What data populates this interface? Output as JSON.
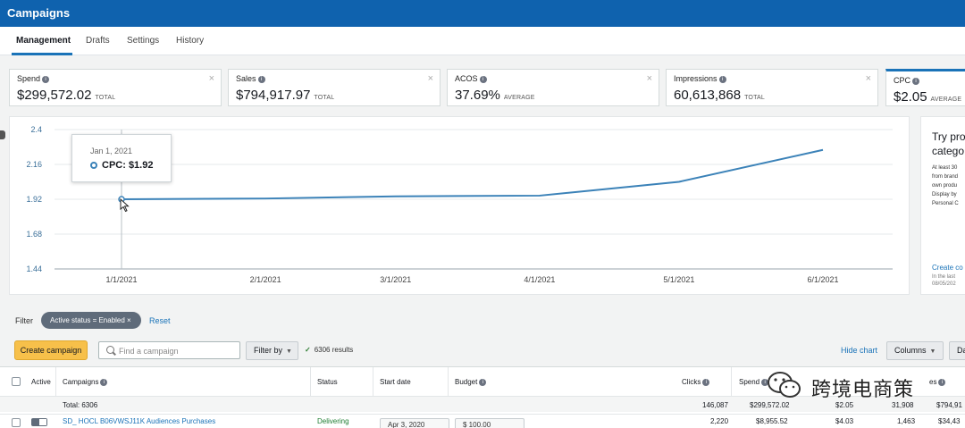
{
  "app": {
    "title": "Campaigns"
  },
  "tabs": [
    {
      "label": "Management",
      "active": true
    },
    {
      "label": "Drafts",
      "active": false
    },
    {
      "label": "Settings",
      "active": false
    },
    {
      "label": "History",
      "active": false
    }
  ],
  "metrics": [
    {
      "label": "Spend",
      "value": "$299,572.02",
      "agg": "TOTAL",
      "selected": false
    },
    {
      "label": "Sales",
      "value": "$794,917.97",
      "agg": "TOTAL",
      "selected": false
    },
    {
      "label": "ACOS",
      "value": "37.69%",
      "agg": "AVERAGE",
      "selected": false
    },
    {
      "label": "Impressions",
      "value": "60,613,868",
      "agg": "TOTAL",
      "selected": false
    },
    {
      "label": "CPC",
      "value": "$2.05",
      "agg": "AVERAGE",
      "selected": true
    }
  ],
  "card_close": "×",
  "chart_data": {
    "type": "line",
    "x": [
      "1/1/2021",
      "2/1/2021",
      "3/1/2021",
      "4/1/2021",
      "5/1/2021",
      "6/1/2021"
    ],
    "series": [
      {
        "color": "#3b82b8",
        "points": [
          {
            "x": "2021-01-01",
            "y": 1.92
          },
          {
            "x": "2021-02-01",
            "y": 1.925
          },
          {
            "x": "2021-03-01",
            "y": 1.94
          },
          {
            "x": "2021-04-01",
            "y": 1.945
          },
          {
            "x": "2021-05-01",
            "y": 2.04
          },
          {
            "x": "2021-06-01",
            "y": 2.26
          }
        ]
      }
    ],
    "yticks": [
      "2.4",
      "2.16",
      "1.92",
      "1.68",
      "1.44"
    ],
    "ylim": [
      1.44,
      2.4
    ],
    "grid": true,
    "title": "",
    "xlabel": "",
    "ylabel": ""
  },
  "tooltip": {
    "date": "Jan 1, 2021",
    "label": "CPC: $1.92"
  },
  "promo": {
    "title_lines": [
      "Try pro",
      "catego"
    ],
    "body_lines": [
      "At least 30",
      "from brand",
      "own produ",
      "Display by",
      "Personal C"
    ],
    "link": "Create co",
    "note_lines": [
      "In the last",
      "08/05/202"
    ]
  },
  "filter": {
    "label": "Filter",
    "chip": "Active status = Enabled ×",
    "reset": "Reset"
  },
  "toolbar": {
    "create": "Create campaign",
    "search_placeholder": "Find a campaign",
    "filter_by": "Filter by",
    "results": "6306 results",
    "hide_chart": "Hide chart",
    "columns": "Columns",
    "extra": "Da"
  },
  "table": {
    "headers": {
      "active": "Active",
      "campaigns": "Campaigns",
      "status": "Status",
      "start_date": "Start date",
      "budget": "Budget",
      "clicks": "Clicks",
      "spend": "Spend",
      "sales": "es"
    },
    "total": {
      "label": "Total: 6306",
      "clicks": "146,087",
      "spend": "$299,572.02",
      "cpc": "$2.05",
      "orders": "31,908",
      "sales": "$794,91"
    },
    "row1": {
      "campaign": "SD_ HOCL B06VWSJ11K Audiences Purchases",
      "status": "Delivering",
      "start_date": "Apr 3, 2020",
      "budget": "$ 100.00",
      "clicks": "2,220",
      "spend": "$8,955.52",
      "cpc": "$4.03",
      "orders": "1,463",
      "sales": "$34,43"
    }
  },
  "watermark": {
    "text": "跨境电商策"
  }
}
